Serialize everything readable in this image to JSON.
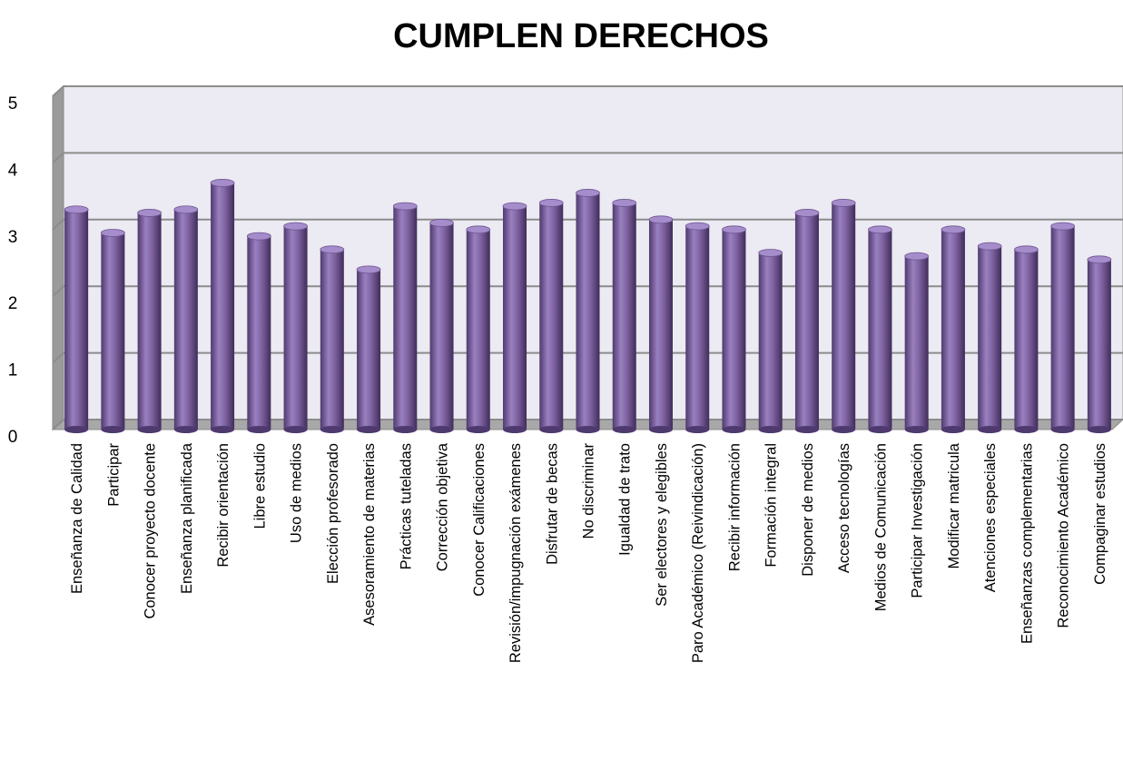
{
  "chart_data": {
    "type": "bar",
    "title": "CUMPLEN DERECHOS",
    "categories": [
      "Enseñanza de Calidad",
      "Participar",
      "Conocer proyecto docente",
      "Enseñanza planificada",
      "Recibir orientación",
      "Libre estudio",
      "Uso de medios",
      "Elección profesorado",
      "Asesoramiento de materias",
      "Prácticas tuteladas",
      "Corrección objetiva",
      "Conocer Calificaciones",
      "Revisión/impugnación exámenes",
      "Disfrutar de becas",
      "No discriminar",
      "Igualdad de trato",
      "Ser electores y elegibles",
      "Paro Académico (Reivindicación)",
      "Recibir información",
      "Formación integral",
      "Disponer de medios",
      "Acceso tecnologías",
      "Medios de Comunicación",
      "Participar Investigación",
      "Modificar matricula",
      "Atenciones especiales",
      "Enseñanzas complementarias",
      "Reconocimiento Académico",
      "Compaginar estudios"
    ],
    "values": [
      3.3,
      2.95,
      3.25,
      3.3,
      3.7,
      2.9,
      3.05,
      2.7,
      2.4,
      3.35,
      3.1,
      3.0,
      3.35,
      3.4,
      3.55,
      3.4,
      3.15,
      3.05,
      3.0,
      2.65,
      3.25,
      3.4,
      3.0,
      2.6,
      3.0,
      2.75,
      2.7,
      3.05,
      2.55
    ],
    "color": "#8064a2",
    "ylim": [
      0,
      5
    ],
    "yticks": [
      0,
      1,
      2,
      3,
      4,
      5
    ],
    "grid": true
  }
}
